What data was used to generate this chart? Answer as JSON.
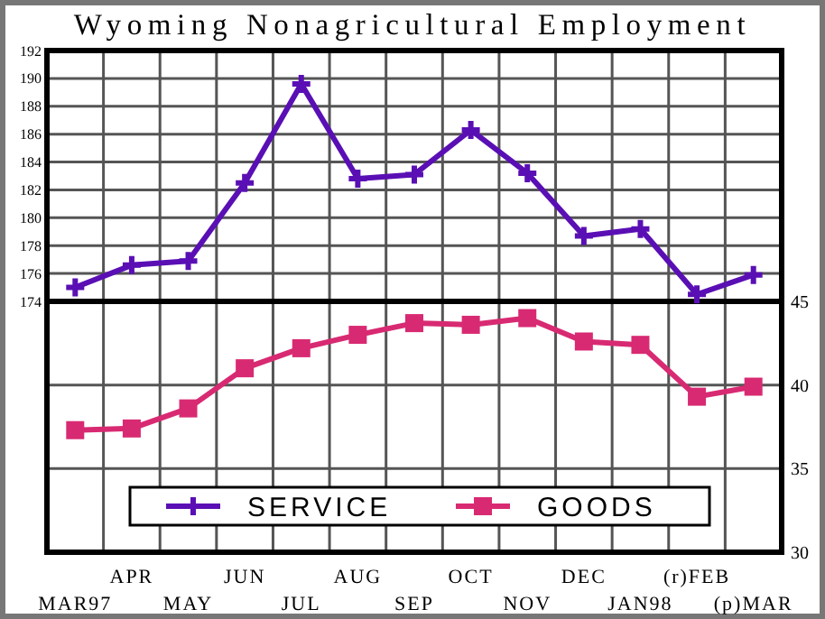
{
  "chart_data": [
    {
      "type": "line",
      "title": "Wyoming Nonagricultural Employment",
      "categories": [
        null,
        null,
        null,
        null,
        null,
        null,
        null,
        null,
        null,
        null,
        null,
        null,
        null
      ],
      "series": [
        {
          "name": "SERVICE",
          "color": "#5a0fb4",
          "values": [
            175.0,
            176.6,
            176.9,
            182.5,
            189.6,
            182.8,
            183.1,
            186.3,
            183.2,
            178.7,
            179.2,
            174.5,
            175.9
          ]
        }
      ],
      "ylim": [
        174,
        192
      ],
      "yticks": [
        174,
        176,
        178,
        180,
        182,
        184,
        186,
        188,
        190,
        192
      ],
      "grid": true,
      "marker": "cross",
      "tick_labels": "y",
      "legend": "bottom"
    },
    {
      "type": "line",
      "categories": [
        "MAR97",
        "APR",
        "MAY",
        "JUN",
        "JUL",
        "AUG",
        "SEP",
        "OCT",
        "NOV",
        "DEC",
        "JAN98",
        "(r)FEB",
        "(p)MAR"
      ],
      "series": [
        {
          "name": "GOODS",
          "color": "#d82a72",
          "axis": "y2",
          "values": [
            37.3,
            37.4,
            38.6,
            41.0,
            42.2,
            43.0,
            43.7,
            43.6,
            44.0,
            42.6,
            42.4,
            39.3,
            39.9
          ]
        }
      ],
      "y2lim": [
        30,
        45
      ],
      "y2ticks": [
        30,
        35,
        40,
        45
      ],
      "grid": true,
      "marker": "square",
      "legend": "bottom"
    }
  ]
}
